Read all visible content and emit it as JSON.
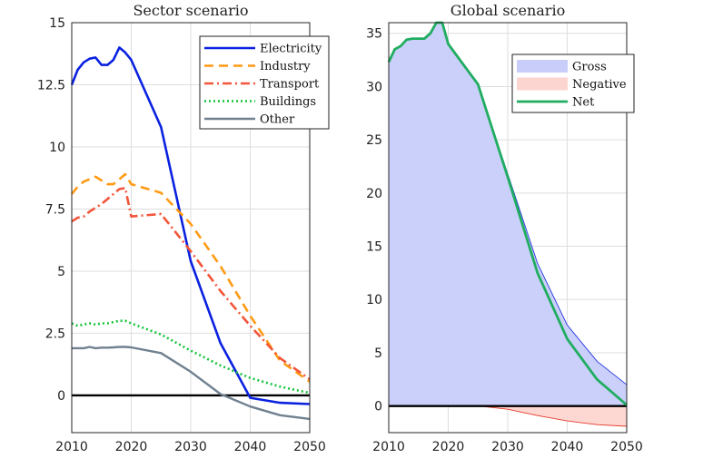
{
  "chart_data": [
    {
      "type": "line",
      "title": "Sector scenario",
      "xlabel": "",
      "ylabel": "",
      "xlim": [
        2010,
        2050
      ],
      "ylim": [
        -1.5,
        15
      ],
      "xticks": [
        "2010",
        "2020",
        "2030",
        "2040",
        "2050"
      ],
      "yticks": [
        "0",
        "2.5",
        "5",
        "7.5",
        "10",
        "12.5",
        "15"
      ],
      "grid": true,
      "legend_position": "top-right",
      "series": [
        {
          "name": "Electricity",
          "color": "#0a21e0",
          "style": "solid",
          "x": [
            2010,
            2011,
            2012,
            2013,
            2014,
            2015,
            2016,
            2017,
            2018,
            2019,
            2020,
            2025,
            2030,
            2035,
            2040,
            2045,
            2050
          ],
          "y": [
            12.5,
            13.1,
            13.4,
            13.55,
            13.6,
            13.3,
            13.3,
            13.5,
            14.0,
            13.8,
            13.5,
            10.8,
            5.4,
            2.1,
            -0.1,
            -0.3,
            -0.35
          ]
        },
        {
          "name": "Industry",
          "color": "#ff9a14",
          "style": "dashed",
          "x": [
            2010,
            2011,
            2012,
            2013,
            2014,
            2015,
            2016,
            2017,
            2018,
            2019,
            2020,
            2025,
            2030,
            2035,
            2040,
            2045,
            2050
          ],
          "y": [
            8.1,
            8.4,
            8.6,
            8.7,
            8.8,
            8.65,
            8.5,
            8.5,
            8.7,
            8.9,
            8.5,
            8.15,
            6.9,
            5.2,
            3.2,
            1.4,
            0.55
          ]
        },
        {
          "name": "Transport",
          "color": "#f2553a",
          "style": "dashdot",
          "x": [
            2010,
            2011,
            2012,
            2013,
            2014,
            2015,
            2016,
            2017,
            2018,
            2019,
            2020,
            2025,
            2030,
            2035,
            2040,
            2045,
            2050
          ],
          "y": [
            7.0,
            7.15,
            7.2,
            7.4,
            7.55,
            7.7,
            7.9,
            8.1,
            8.3,
            8.35,
            7.2,
            7.3,
            5.8,
            4.2,
            2.8,
            1.5,
            0.65
          ]
        },
        {
          "name": "Buildings",
          "color": "#16c43c",
          "style": "dotted",
          "x": [
            2010,
            2011,
            2012,
            2013,
            2014,
            2015,
            2016,
            2017,
            2018,
            2019,
            2020,
            2025,
            2030,
            2035,
            2040,
            2045,
            2050
          ],
          "y": [
            2.9,
            2.8,
            2.85,
            2.9,
            2.85,
            2.9,
            2.9,
            2.95,
            3.0,
            3.0,
            2.9,
            2.45,
            1.8,
            1.2,
            0.7,
            0.35,
            0.1
          ]
        },
        {
          "name": "Other",
          "color": "#708090",
          "style": "solid",
          "x": [
            2010,
            2011,
            2012,
            2013,
            2014,
            2015,
            2016,
            2017,
            2018,
            2019,
            2020,
            2025,
            2030,
            2035,
            2040,
            2045,
            2050
          ],
          "y": [
            1.9,
            1.9,
            1.9,
            1.95,
            1.9,
            1.92,
            1.92,
            1.93,
            1.95,
            1.95,
            1.93,
            1.7,
            0.95,
            0.05,
            -0.45,
            -0.8,
            -0.95
          ]
        }
      ],
      "reference_line": {
        "y": 0,
        "color": "#000000"
      }
    },
    {
      "type": "area",
      "title": "Global scenario",
      "xlabel": "",
      "ylabel": "",
      "xlim": [
        2010,
        2050
      ],
      "ylim": [
        -2.5,
        36
      ],
      "xticks": [
        "2010",
        "2020",
        "2030",
        "2040",
        "2050"
      ],
      "yticks": [
        "0",
        "5",
        "10",
        "15",
        "20",
        "25",
        "30",
        "35"
      ],
      "grid": true,
      "legend_position": "top-right",
      "x": [
        2010,
        2011,
        2012,
        2013,
        2014,
        2015,
        2016,
        2017,
        2018,
        2019,
        2020,
        2025,
        2030,
        2035,
        2040,
        2045,
        2050
      ],
      "series": [
        {
          "name": "Gross",
          "kind": "area",
          "color": "#c8cdfa",
          "edge_color": "#2233dd",
          "values": [
            32.3,
            33.5,
            33.8,
            34.4,
            34.5,
            34.5,
            34.5,
            35.0,
            36.0,
            36.0,
            34.0,
            30.2,
            21.8,
            13.4,
            7.6,
            4.2,
            2.0
          ]
        },
        {
          "name": "Negative",
          "kind": "area",
          "color": "#fdd5d0",
          "edge_color": "#e53a2c",
          "values": [
            0,
            0,
            0,
            0,
            0,
            0,
            0,
            0,
            0,
            0,
            0,
            0,
            -0.3,
            -0.9,
            -1.4,
            -1.75,
            -1.9
          ]
        },
        {
          "name": "Net",
          "kind": "line",
          "color": "#20ad60",
          "values": [
            32.3,
            33.5,
            33.8,
            34.4,
            34.5,
            34.5,
            34.5,
            35.0,
            36.0,
            36.0,
            34.0,
            30.2,
            21.5,
            12.5,
            6.3,
            2.5,
            0.1
          ]
        }
      ],
      "reference_line": {
        "y": 0,
        "color": "#000000"
      }
    }
  ]
}
